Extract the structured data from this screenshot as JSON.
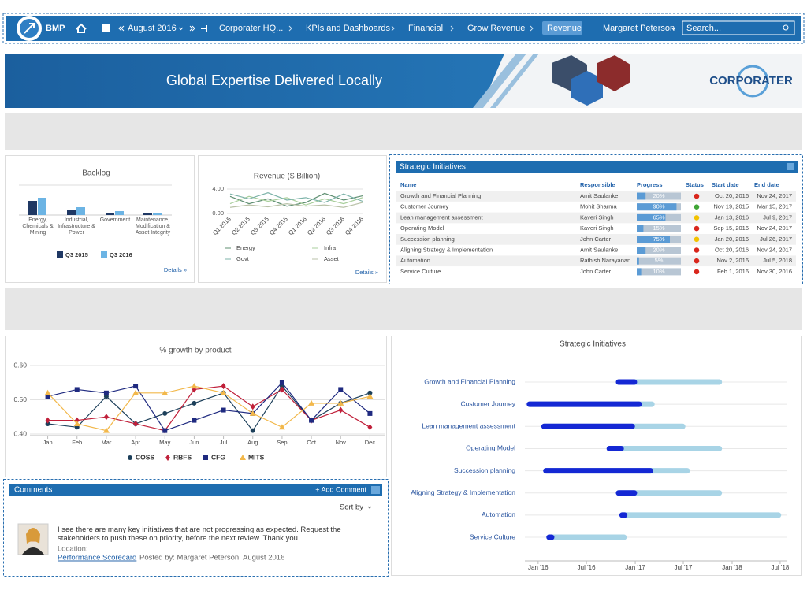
{
  "nav": {
    "app": "BMP",
    "period": "August 2016",
    "breadcrumbs": [
      "Corporater HQ...",
      "KPIs and Dashboards",
      "Financial",
      "Grow Revenue",
      "Revenue"
    ],
    "user": "Margaret Peterson",
    "search_placeholder": "Search..."
  },
  "banner": {
    "tagline": "Global Expertise Delivered Locally",
    "brand": "CORPORATER"
  },
  "chart_data": [
    {
      "type": "bar",
      "title": "Backlog",
      "details": "Details »",
      "legend": "bottom",
      "categories": [
        "Energy, Chemicals & Mining",
        "Industrial, Infrastructure & Power",
        "Government",
        "Maintenance, Modification & Asset Integrity"
      ],
      "series": [
        {
          "name": "Q3 2015",
          "color": "#1f3864",
          "values": [
            18,
            7,
            3,
            3
          ]
        },
        {
          "name": "Q3 2016",
          "color": "#6cb4e4",
          "values": [
            22,
            10,
            5,
            3
          ]
        }
      ]
    },
    {
      "type": "line",
      "title": "Revenue ($ Billion)",
      "details": "Details »",
      "legend": "bottom",
      "categories": [
        "Q1 2015",
        "Q2 2015",
        "Q3 2015",
        "Q4 2015",
        "Q1 2016",
        "Q2 2016",
        "Q3 2016",
        "Q4 2016"
      ],
      "ylim": [
        0,
        4
      ],
      "yticks": [
        {
          "value": 0,
          "label": "0.00"
        },
        {
          "value": 4,
          "label": "4.00"
        }
      ],
      "grid": true,
      "series": [
        {
          "name": "Energy",
          "color": "#5f8f72",
          "values": [
            2.8,
            1.6,
            2.4,
            1.2,
            1.8,
            3.3,
            2.2,
            2.9
          ]
        },
        {
          "name": "Infra",
          "color": "#a9cf9c",
          "values": [
            1.6,
            2.8,
            2.0,
            2.6,
            1.4,
            2.4,
            1.6,
            2.6
          ]
        },
        {
          "name": "Govt",
          "color": "#7db3a9",
          "values": [
            3.2,
            2.4,
            3.4,
            2.2,
            2.6,
            1.8,
            3.2,
            2.0
          ]
        },
        {
          "name": "Asset",
          "color": "#b9c2a8",
          "values": [
            1.0,
            1.4,
            1.1,
            1.6,
            1.2,
            1.4,
            1.0,
            1.8
          ]
        }
      ]
    },
    {
      "type": "line",
      "title": "% growth by product",
      "legend": "bottom",
      "categories": [
        "Jan",
        "Feb",
        "Mar",
        "Apr",
        "May",
        "Jun",
        "Jul",
        "Aug",
        "Sep",
        "Oct",
        "Nov",
        "Dec"
      ],
      "ylim": [
        0.4,
        0.6
      ],
      "yticks": [
        {
          "value": 0.4,
          "label": "0.40"
        },
        {
          "value": 0.5,
          "label": "0.50"
        },
        {
          "value": 0.6,
          "label": "0.60"
        }
      ],
      "grid": true,
      "series": [
        {
          "name": "COSS",
          "color": "#1c3f5a",
          "marker": "circle",
          "values": [
            0.43,
            0.42,
            0.51,
            0.43,
            0.46,
            0.49,
            0.52,
            0.41,
            0.54,
            0.44,
            0.49,
            0.52
          ]
        },
        {
          "name": "RBFS",
          "color": "#c0203a",
          "marker": "diamond",
          "values": [
            0.44,
            0.44,
            0.45,
            0.43,
            0.41,
            0.53,
            0.54,
            0.48,
            0.53,
            0.44,
            0.47,
            0.42
          ]
        },
        {
          "name": "CFG",
          "color": "#1f2a80",
          "marker": "square",
          "values": [
            0.51,
            0.53,
            0.52,
            0.54,
            0.41,
            0.44,
            0.47,
            0.46,
            0.55,
            0.44,
            0.53,
            0.46
          ]
        },
        {
          "name": "MITS",
          "color": "#f2b84b",
          "marker": "triangle",
          "values": [
            0.52,
            0.43,
            0.41,
            0.52,
            0.52,
            0.54,
            0.52,
            0.46,
            0.42,
            0.49,
            0.49,
            0.51
          ]
        }
      ]
    },
    {
      "type": "gantt",
      "title": "Strategic Initiatives",
      "xlim": [
        "2015-11-12",
        "2018-07-25"
      ],
      "grid": true,
      "done_color": "#1428d4",
      "rest_color": "#a8d4e6",
      "xticks": [
        {
          "value": "2016-01-01",
          "label": "Jan '16"
        },
        {
          "value": "2016-07-01",
          "label": "Jul '16"
        },
        {
          "value": "2017-01-01",
          "label": "Jan '17"
        },
        {
          "value": "2017-07-01",
          "label": "Jul '17"
        },
        {
          "value": "2018-01-01",
          "label": "Jan '18"
        },
        {
          "value": "2018-07-01",
          "label": "Jul '18"
        }
      ]
    }
  ],
  "initiatives": {
    "title": "Strategic Initiatives",
    "columns": [
      "Name",
      "Responsible",
      "Progress",
      "Status",
      "Start date",
      "End date"
    ],
    "rows": [
      {
        "name": "Growth and Financial Planning",
        "responsible": "Amit Saulanke",
        "progress": 20,
        "progress_label": "20%",
        "status_color": "#d9261c",
        "start": "Oct 20, 2016",
        "end": "Nov 24, 2017"
      },
      {
        "name": "Customer Journey",
        "responsible": "Mohit Sharma",
        "progress": 90,
        "progress_label": "90%",
        "status_color": "#3fa535",
        "start": "Nov 19, 2015",
        "end": "Mar 15, 2017"
      },
      {
        "name": "Lean management assessment",
        "responsible": "Kaveri Singh",
        "progress": 65,
        "progress_label": "65%",
        "status_color": "#f2c200",
        "start": "Jan 13, 2016",
        "end": "Jul 9, 2017"
      },
      {
        "name": "Operating Model",
        "responsible": "Kaveri Singh",
        "progress": 15,
        "progress_label": "15%",
        "status_color": "#d9261c",
        "start": "Sep 15, 2016",
        "end": "Nov 24, 2017"
      },
      {
        "name": "Succession planning",
        "responsible": "John Carter",
        "progress": 75,
        "progress_label": "75%",
        "status_color": "#f2c200",
        "start": "Jan 20, 2016",
        "end": "Jul 26, 2017"
      },
      {
        "name": "Aligning Strategy & Implementation",
        "responsible": "Amit Saulanke",
        "progress": 20,
        "progress_label": "20%",
        "status_color": "#d9261c",
        "start": "Oct 20, 2016",
        "end": "Nov 24, 2017"
      },
      {
        "name": "Automation",
        "responsible": "Rathish Narayanan",
        "progress": 5,
        "progress_label": "5%",
        "status_color": "#d9261c",
        "start": "Nov 2, 2016",
        "end": "Jul 5, 2018"
      },
      {
        "name": "Service Culture",
        "responsible": "John Carter",
        "progress": 10,
        "progress_label": "10%",
        "status_color": "#d9261c",
        "start": "Feb 1, 2016",
        "end": "Nov 30, 2016"
      }
    ]
  },
  "comments": {
    "title": "Comments",
    "add": "+ Add Comment",
    "sort": "Sort by",
    "items": [
      {
        "text": "I see there are many key initiatives that are not progressing as expected. Request the stakeholders to push these on priority, before the next review. Thank you",
        "location_label": "Location:",
        "location": "Performance Scorecard",
        "posted_by": "Posted by: Margaret Peterson",
        "date": "August 2016"
      }
    ]
  }
}
